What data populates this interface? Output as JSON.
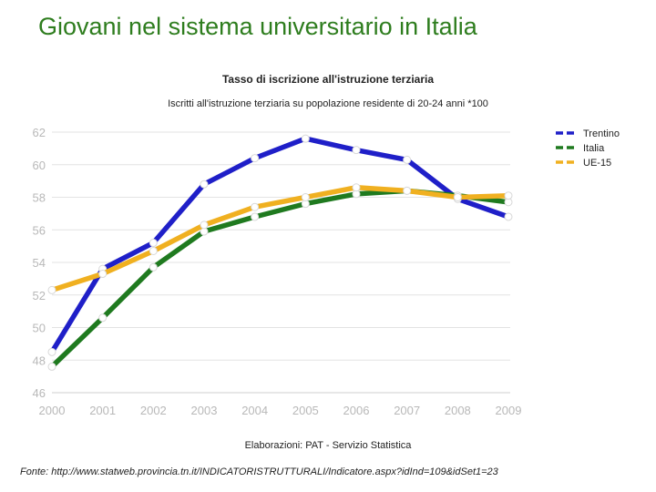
{
  "slide": {
    "title": "Giovani nel sistema universitario in Italia",
    "footnote": "Fonte: http://www.statweb.provincia.tn.it/INDICATORISTRUTTURALI/Indicatore.aspx?idInd=109&idSet1=23"
  },
  "chart_data": {
    "type": "line",
    "title": "Tasso di iscrizione all'istruzione terziaria",
    "subtitle": "Iscritti all'istruzione terziaria su popolazione residente di 20-24 anni *100",
    "source": "Elaborazioni: PAT - Servizio Statistica",
    "x": [
      "2000",
      "2001",
      "2002",
      "2003",
      "2004",
      "2005",
      "2006",
      "2007",
      "2008",
      "2009"
    ],
    "ylim": [
      46,
      62
    ],
    "yticks": [
      "46",
      "48",
      "50",
      "52",
      "54",
      "56",
      "58",
      "60",
      "62"
    ],
    "grid": true,
    "legend_position": "right",
    "series": [
      {
        "name": "Trentino",
        "color": "#1f1fc8",
        "values": [
          48.5,
          53.6,
          55.2,
          58.8,
          60.4,
          61.6,
          60.9,
          60.3,
          57.9,
          56.8
        ]
      },
      {
        "name": "Italia",
        "color": "#1f7a1f",
        "values": [
          47.6,
          50.6,
          53.7,
          55.9,
          56.8,
          57.6,
          58.2,
          58.4,
          58.1,
          57.7
        ]
      },
      {
        "name": "UE-15",
        "color": "#f0b020",
        "values": [
          52.3,
          53.3,
          54.7,
          56.3,
          57.4,
          58.0,
          58.6,
          58.4,
          58.0,
          58.1
        ]
      }
    ]
  }
}
